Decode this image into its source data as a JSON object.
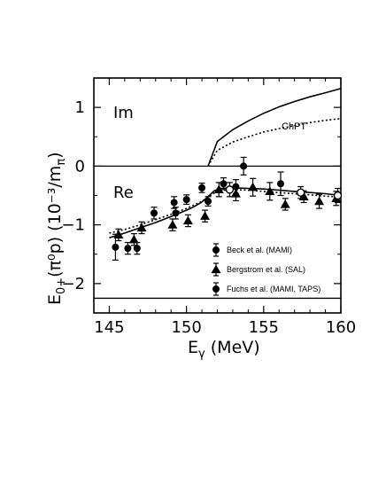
{
  "chart_data": {
    "type": "scatter",
    "xlim": [
      144,
      160
    ],
    "ylim": [
      -2.5,
      1.5
    ],
    "x_ticks": [
      "145",
      "150",
      "155",
      "160"
    ],
    "y_ticks": [
      "1",
      "0",
      "−1",
      "−2"
    ],
    "x_tick_values": [
      145,
      150,
      155,
      160
    ],
    "y_tick_values": [
      1,
      0,
      -1,
      -2
    ],
    "xlabel": {
      "main": "E",
      "sub": "γ",
      "rest": " (MeV)"
    },
    "ylabel": {
      "main": "E",
      "sub": "0+",
      "rest": "(π⁰p)  (10⁻³/m",
      "sub2": "π",
      "close": ")"
    },
    "panel_labels": {
      "im": "Im",
      "re": "Re"
    },
    "curve_label": "ChPT",
    "colors": {
      "ink": "#000000",
      "background": "#ffffff"
    },
    "legend": [
      {
        "marker": "circle",
        "label": "Beck et al. (MAMI)"
      },
      {
        "marker": "triangle",
        "label": "Bergstrom et al. (SAL)"
      },
      {
        "marker": "circle",
        "label": "Fuchs et al. (MAMI, TAPS)"
      }
    ],
    "curves": [
      {
        "style": "solid",
        "part": "Im",
        "x": [
          151.4,
          152,
          153,
          154,
          155,
          156,
          157,
          158,
          159,
          160
        ],
        "y": [
          0,
          0.42,
          0.62,
          0.77,
          0.9,
          1.01,
          1.1,
          1.18,
          1.25,
          1.32
        ]
      },
      {
        "style": "dotted",
        "part": "Im",
        "x": [
          151.4,
          152,
          153,
          154,
          155,
          156,
          157,
          158,
          159,
          160
        ],
        "y": [
          0,
          0.27,
          0.41,
          0.5,
          0.58,
          0.64,
          0.69,
          0.74,
          0.78,
          0.81
        ]
      },
      {
        "style": "solid",
        "part": "Re",
        "x": [
          145,
          146,
          147,
          148,
          149,
          150,
          150.5,
          151,
          151.4,
          151.8,
          152.2,
          153,
          154,
          155,
          156,
          157,
          158,
          159,
          160
        ],
        "y": [
          -1.22,
          -1.14,
          -1.05,
          -0.96,
          -0.86,
          -0.75,
          -0.69,
          -0.61,
          -0.52,
          -0.42,
          -0.38,
          -0.37,
          -0.38,
          -0.39,
          -0.41,
          -0.43,
          -0.45,
          -0.47,
          -0.5
        ]
      },
      {
        "style": "dotted",
        "part": "Re",
        "x": [
          145,
          146,
          147,
          148,
          149,
          150,
          151,
          151.4,
          152,
          153,
          154,
          155,
          156,
          157,
          158,
          159,
          160
        ],
        "y": [
          -1.14,
          -1.08,
          -1.0,
          -0.91,
          -0.82,
          -0.72,
          -0.6,
          -0.53,
          -0.42,
          -0.4,
          -0.41,
          -0.43,
          -0.45,
          -0.47,
          -0.49,
          -0.51,
          -0.53
        ]
      }
    ],
    "reference_lines": [
      {
        "y": 0
      },
      {
        "y": -2.25
      }
    ],
    "series": [
      {
        "marker": "circle",
        "points": [
          {
            "x": 145.4,
            "y": -1.38,
            "err": 0.22
          },
          {
            "x": 146.2,
            "y": -1.4,
            "err": 0.1
          },
          {
            "x": 146.8,
            "y": -1.4,
            "err": 0.1
          },
          {
            "x": 147.9,
            "y": -0.8,
            "err": 0.1
          },
          {
            "x": 149.2,
            "y": -0.62,
            "err": 0.1
          },
          {
            "x": 149.3,
            "y": -0.8,
            "err": 0.1
          },
          {
            "x": 150.0,
            "y": -0.57,
            "err": 0.08
          },
          {
            "x": 151.0,
            "y": -0.37,
            "err": 0.08
          },
          {
            "x": 151.4,
            "y": -0.6,
            "err": 0.08
          },
          {
            "x": 152.4,
            "y": -0.3,
            "err": 0.1
          },
          {
            "x": 153.2,
            "y": -0.35,
            "err": 0.12
          },
          {
            "x": 153.7,
            "y": 0.0,
            "err": 0.15
          },
          {
            "x": 156.1,
            "y": -0.3,
            "err": 0.2
          }
        ]
      },
      {
        "marker": "triangle",
        "points": [
          {
            "x": 145.6,
            "y": -1.17,
            "err": 0.1
          },
          {
            "x": 146.6,
            "y": -1.25,
            "err": 0.1
          },
          {
            "x": 147.1,
            "y": -1.05,
            "err": 0.1
          },
          {
            "x": 149.1,
            "y": -1.0,
            "err": 0.1
          },
          {
            "x": 150.1,
            "y": -0.93,
            "err": 0.1
          },
          {
            "x": 151.2,
            "y": -0.85,
            "err": 0.1
          },
          {
            "x": 152.1,
            "y": -0.4,
            "err": 0.12
          },
          {
            "x": 153.2,
            "y": -0.47,
            "err": 0.12
          },
          {
            "x": 154.3,
            "y": -0.36,
            "err": 0.15
          },
          {
            "x": 155.4,
            "y": -0.43,
            "err": 0.15
          },
          {
            "x": 156.4,
            "y": -0.65,
            "err": 0.1
          },
          {
            "x": 157.6,
            "y": -0.52,
            "err": 0.1
          },
          {
            "x": 158.6,
            "y": -0.6,
            "err": 0.12
          },
          {
            "x": 159.7,
            "y": -0.55,
            "err": 0.12
          }
        ]
      },
      {
        "marker": "circle-hollow",
        "points": [
          {
            "x": 152.8,
            "y": -0.4,
            "err": 0.12
          },
          {
            "x": 157.4,
            "y": -0.45,
            "err": 0.1
          },
          {
            "x": 159.8,
            "y": -0.5,
            "err": 0.12
          }
        ]
      }
    ]
  }
}
